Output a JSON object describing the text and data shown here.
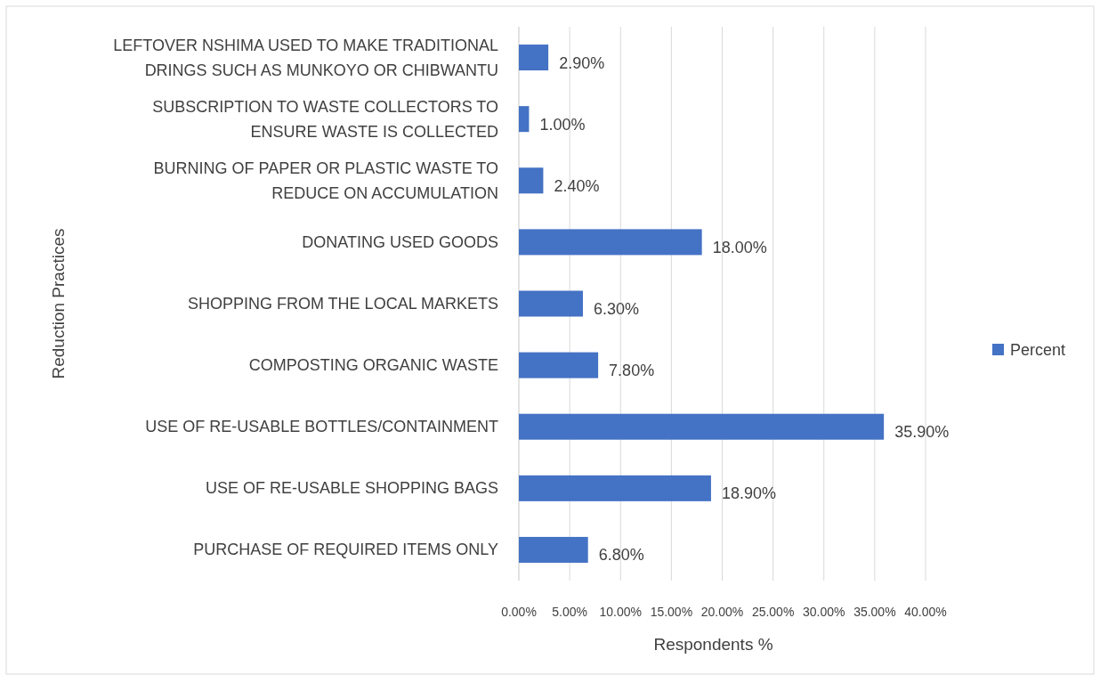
{
  "chart_data": {
    "type": "bar",
    "orientation": "horizontal",
    "ylabel": "Reduction Practices",
    "xlabel": "Respondents %",
    "categories": [
      "LEFTOVER NSHIMA USED TO MAKE TRADITIONAL DRINGS SUCH AS MUNKOYO OR CHIBWANTU",
      "SUBSCRIPTION TO WASTE COLLECTORS TO ENSURE WASTE IS COLLECTED",
      "BURNING OF PAPER OR PLASTIC WASTE TO REDUCE ON ACCUMULATION",
      "DONATING USED GOODS",
      "SHOPPING FROM THE LOCAL MARKETS",
      "COMPOSTING ORGANIC WASTE",
      "USE OF RE-USABLE BOTTLES/CONTAINMENT",
      "USE OF RE-USABLE SHOPPING BAGS",
      "PURCHASE OF REQUIRED ITEMS ONLY"
    ],
    "series": [
      {
        "name": "Percent",
        "color": "#4472c4",
        "values": [
          2.9,
          1.0,
          2.4,
          18.0,
          6.3,
          7.8,
          35.9,
          18.9,
          6.8
        ],
        "value_labels": [
          "2.90%",
          "1.00%",
          "2.40%",
          "18.00%",
          "6.30%",
          "7.80%",
          "35.90%",
          "18.90%",
          "6.80%"
        ]
      }
    ],
    "xlim": [
      0,
      40
    ],
    "xticks": [
      {
        "value": 0,
        "label": "0.00%"
      },
      {
        "value": 5,
        "label": "5.00%"
      },
      {
        "value": 10,
        "label": "10.00%"
      },
      {
        "value": 15,
        "label": "15.00%"
      },
      {
        "value": 20,
        "label": "20.00%"
      },
      {
        "value": 25,
        "label": "25.00%"
      },
      {
        "value": 30,
        "label": "30.00%"
      },
      {
        "value": 35,
        "label": "35.00%"
      },
      {
        "value": 40,
        "label": "40.00%"
      }
    ],
    "grid": "x",
    "legend": "right"
  }
}
